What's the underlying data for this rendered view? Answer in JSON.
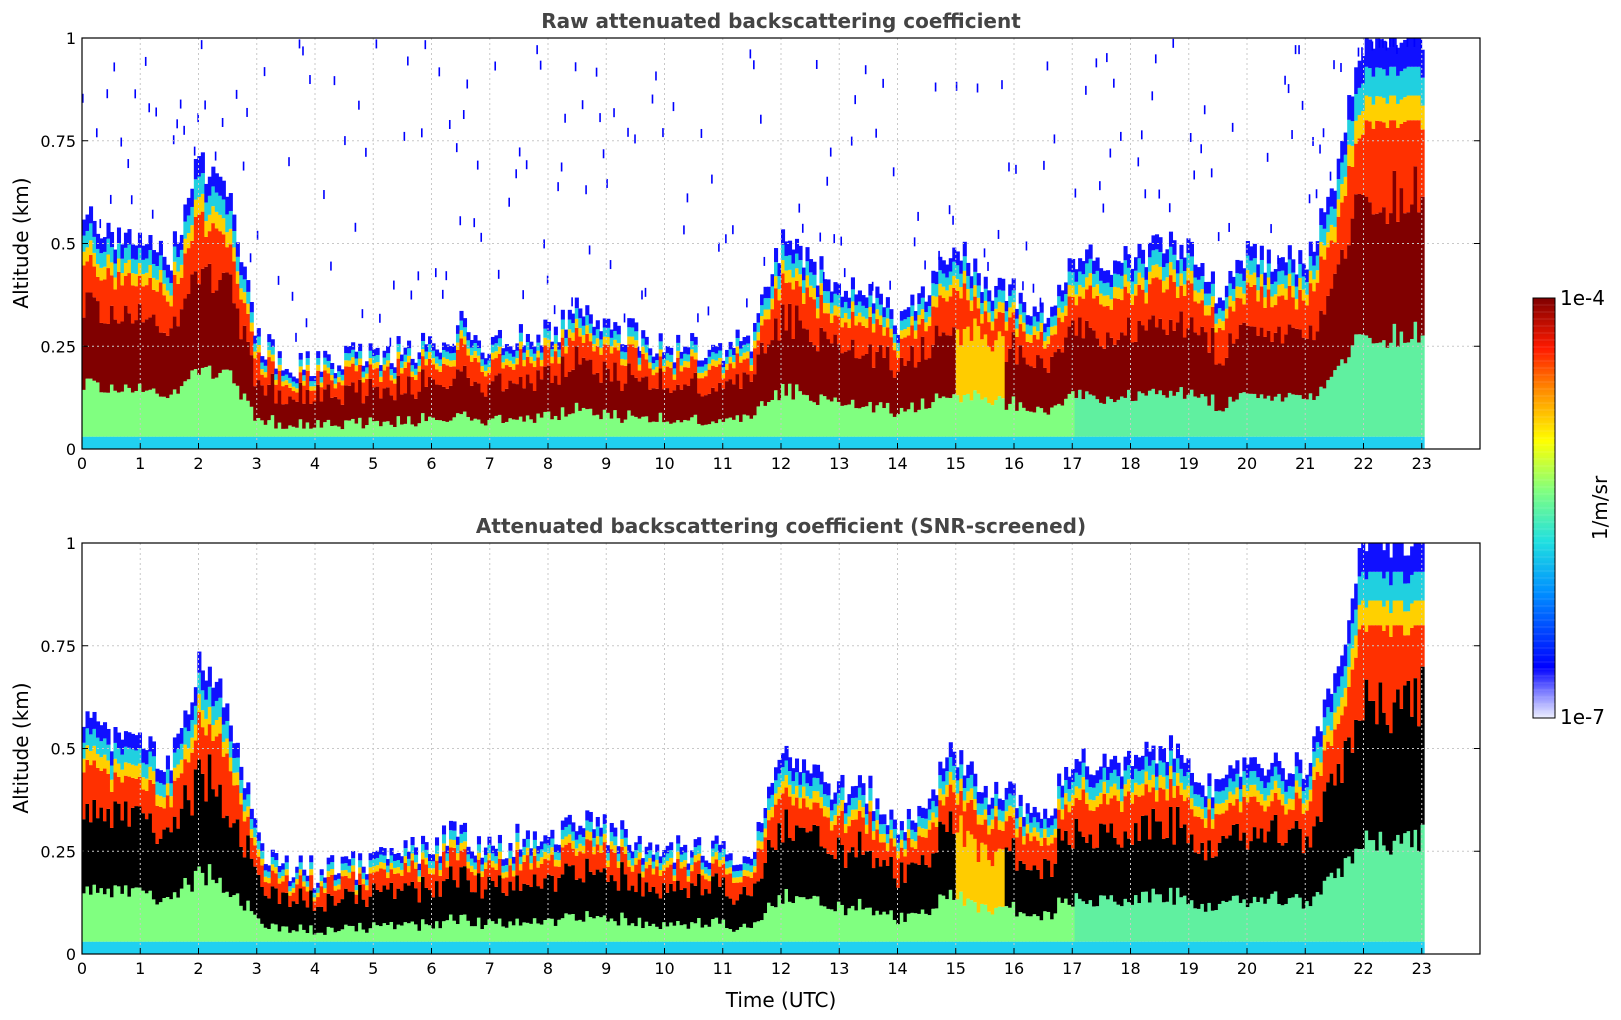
{
  "chart_data": [
    {
      "type": "heatmap",
      "title": "Raw attenuated backscattering coefficient",
      "xlabel": "",
      "ylabel": "Altitude (km)",
      "x_ticks": [
        "0",
        "1",
        "2",
        "3",
        "4",
        "5",
        "6",
        "7",
        "8",
        "9",
        "10",
        "11",
        "12",
        "13",
        "14",
        "15",
        "16",
        "17",
        "18",
        "19",
        "20",
        "21",
        "22",
        "23"
      ],
      "y_ticks": [
        "0",
        "0.25",
        "0.5",
        "0.75",
        "1"
      ],
      "xlim": [
        0,
        24
      ],
      "ylim": [
        0,
        1
      ],
      "grid": true,
      "layer_top_km": {
        "x": [
          0,
          0.5,
          1,
          1.5,
          2,
          2.5,
          3,
          3.5,
          4,
          4.5,
          5,
          5.5,
          6,
          6.5,
          7,
          7.5,
          8,
          8.5,
          9,
          9.5,
          10,
          10.5,
          11,
          11.5,
          12,
          12.5,
          13,
          13.5,
          14,
          14.5,
          15,
          15.5,
          16,
          16.5,
          17,
          17.5,
          18,
          18.5,
          19,
          19.5,
          20,
          20.5,
          21,
          21.5,
          22,
          22.5,
          22.9
        ],
        "y": [
          0.58,
          0.52,
          0.52,
          0.45,
          0.7,
          0.62,
          0.28,
          0.2,
          0.2,
          0.22,
          0.22,
          0.24,
          0.26,
          0.3,
          0.25,
          0.28,
          0.28,
          0.33,
          0.3,
          0.28,
          0.25,
          0.25,
          0.25,
          0.26,
          0.5,
          0.45,
          0.4,
          0.4,
          0.3,
          0.38,
          0.5,
          0.4,
          0.38,
          0.32,
          0.48,
          0.45,
          0.46,
          0.5,
          0.48,
          0.38,
          0.48,
          0.46,
          0.46,
          0.65,
          1.0,
          1.0,
          1.0
        ]
      }
    },
    {
      "type": "heatmap",
      "title": "Attenuated backscattering coefficient (SNR-screened)",
      "xlabel": "Time (UTC)",
      "ylabel": "Altitude (km)",
      "x_ticks": [
        "0",
        "1",
        "2",
        "3",
        "4",
        "5",
        "6",
        "7",
        "8",
        "9",
        "10",
        "11",
        "12",
        "13",
        "14",
        "15",
        "16",
        "17",
        "18",
        "19",
        "20",
        "21",
        "22",
        "23"
      ],
      "y_ticks": [
        "0",
        "0.25",
        "0.5",
        "0.75",
        "1"
      ],
      "xlim": [
        0,
        24
      ],
      "ylim": [
        0,
        1
      ],
      "grid": true
    }
  ],
  "colorbar": {
    "label": "1/m/sr",
    "max_label": "1e-4",
    "min_label": "1e-7",
    "colormap": "jet"
  },
  "colors": {
    "saturated_raw": "#800000",
    "saturated_screened": "#000000",
    "title_color": "#444444"
  }
}
